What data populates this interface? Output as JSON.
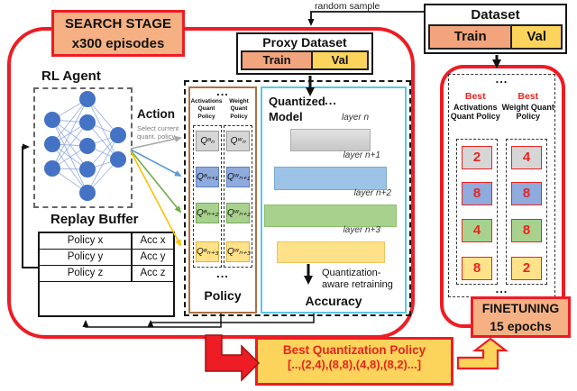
{
  "colors": {
    "red_accent": "#ee1c24",
    "red_text": "#e8251f",
    "orange_fill": "#f5b183",
    "yellow_fill": "#fcd45c",
    "node_blue": "#4472c4",
    "cell_gray": "#d6d6d6",
    "cell_blue": "#8faadc",
    "cell_green": "#a9d18e",
    "cell_yellow": "#ffe28a",
    "policy_border_brown": "#a97142",
    "model_border_cyan": "#5bc6ea"
  },
  "labels": {
    "random_sample": "random sample",
    "ellipsis": "..."
  },
  "search_stage": {
    "line1": "SEARCH STAGE",
    "line2": "x300 episodes"
  },
  "dataset": {
    "title": "Dataset",
    "train_label": "Train",
    "val_label": "Val"
  },
  "proxy_dataset": {
    "title": "Proxy Dataset",
    "train_label": "Train",
    "val_label": "Val"
  },
  "rl_agent": {
    "title": "RL Agent"
  },
  "action": {
    "title": "Action",
    "subtitle": "Select current quant. policy"
  },
  "replay_buffer": {
    "title": "Replay Buffer",
    "rows": [
      {
        "policy": "Policy x",
        "acc": "Acc x"
      },
      {
        "policy": "Policy y",
        "acc": "Acc y"
      },
      {
        "policy": "Policy z",
        "acc": "Acc z"
      }
    ]
  },
  "policy_panel": {
    "col1_header": "Activations Quant Policy",
    "col2_header": "Weight Quant Policy",
    "rows": [
      {
        "a": "Qᵃₙ",
        "w": "Qʷₙ"
      },
      {
        "a": "Qᵃₙ₊₁",
        "w": "Qʷₙ₊₁"
      },
      {
        "a": "Qᵃₙ₊₂",
        "w": "Qʷₙ₊₂"
      },
      {
        "a": "Qᵃₙ₊₃",
        "w": "Qʷₙ₊₃"
      }
    ],
    "footer": "Policy"
  },
  "quantized_model": {
    "title": "Quantized Model",
    "layers": [
      {
        "label": "layer n"
      },
      {
        "label": "layer n+1"
      },
      {
        "label": "layer n+2"
      },
      {
        "label": "layer n+3"
      }
    ],
    "retraining_label": "Quantization-aware retraining",
    "footer": "Accuracy"
  },
  "best_policy_panel": {
    "columns": [
      {
        "best": "Best",
        "name": "Activations Quant Policy",
        "values": [
          "2",
          "8",
          "4",
          "8"
        ]
      },
      {
        "best": "Best",
        "name": "Weight Quant Policy",
        "values": [
          "4",
          "8",
          "8",
          "2"
        ]
      }
    ]
  },
  "finetuning": {
    "line1": "FINETUNING",
    "line2": "15 epochs"
  },
  "best_quant_policy": {
    "title": "Best Quantization Policy",
    "value": "[..,(2,4),(8,8),(4,8),(8,2)...]"
  }
}
